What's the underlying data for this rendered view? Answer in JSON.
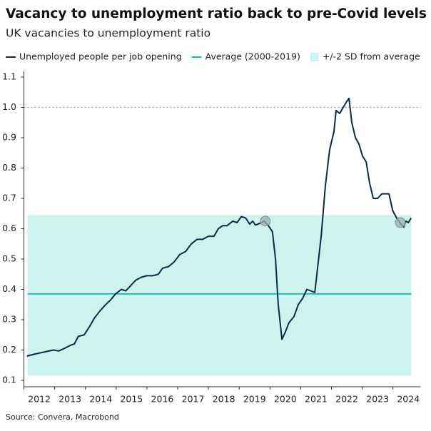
{
  "chart_data": {
    "type": "line",
    "title": "Vacancy to unemployment ratio back to pre-Covid levels",
    "subtitle": "UK vacancies to unemployment ratio",
    "source": "Source: Convera, Macrobond",
    "series": [
      {
        "name": "Unemployed people per job opening",
        "color": "#0d2a44",
        "x": [
          2012.1,
          2012.29,
          2012.5,
          2012.73,
          2012.96,
          2013.13,
          2013.31,
          2013.5,
          2013.64,
          2013.77,
          2013.96,
          2014.15,
          2014.29,
          2014.48,
          2014.66,
          2014.82,
          2014.98,
          2015.17,
          2015.31,
          2015.45,
          2015.63,
          2015.82,
          2016.0,
          2016.19,
          2016.37,
          2016.51,
          2016.7,
          2016.88,
          2017.07,
          2017.26,
          2017.44,
          2017.63,
          2017.81,
          2018.0,
          2018.18,
          2018.32,
          2018.46,
          2018.6,
          2018.79,
          2018.93,
          2019.07,
          2019.21,
          2019.34,
          2019.44,
          2019.53,
          2019.67,
          2019.81,
          2019.95,
          2020.08,
          2020.18,
          2020.27,
          2020.39,
          2020.5,
          2020.62,
          2020.78,
          2020.92,
          2021.06,
          2021.2,
          2021.46,
          2021.67,
          2021.8,
          2021.94,
          2022.08,
          2022.15,
          2022.27,
          2022.38,
          2022.5,
          2022.57,
          2022.66,
          2022.78,
          2022.89,
          2023.01,
          2023.13,
          2023.24,
          2023.36,
          2023.5,
          2023.64,
          2023.87,
          2023.99,
          2024.12,
          2024.26,
          2024.35,
          2024.42,
          2024.5,
          2024.59
        ],
        "values": [
          0.18,
          0.185,
          0.19,
          0.195,
          0.2,
          0.197,
          0.205,
          0.215,
          0.22,
          0.245,
          0.25,
          0.28,
          0.305,
          0.33,
          0.35,
          0.365,
          0.385,
          0.4,
          0.395,
          0.41,
          0.43,
          0.44,
          0.445,
          0.445,
          0.45,
          0.47,
          0.475,
          0.49,
          0.515,
          0.525,
          0.55,
          0.565,
          0.565,
          0.575,
          0.575,
          0.6,
          0.61,
          0.61,
          0.625,
          0.62,
          0.64,
          0.635,
          0.615,
          0.625,
          0.612,
          0.618,
          0.625,
          0.61,
          0.59,
          0.5,
          0.35,
          0.235,
          0.26,
          0.29,
          0.31,
          0.35,
          0.37,
          0.4,
          0.39,
          0.58,
          0.74,
          0.86,
          0.92,
          0.99,
          0.98,
          1.0,
          1.02,
          1.03,
          0.95,
          0.9,
          0.88,
          0.84,
          0.82,
          0.75,
          0.7,
          0.7,
          0.715,
          0.715,
          0.66,
          0.635,
          0.615,
          0.605,
          0.625,
          0.62,
          0.635
        ]
      }
    ],
    "average": {
      "name": "Average (2000-2019)",
      "value": 0.385,
      "color": "#14b8b0"
    },
    "band": {
      "name": "+/-2 SD from average",
      "low": 0.115,
      "high": 0.645,
      "color": "#cdf3ef"
    },
    "reference_line": {
      "value": 1,
      "color": "#999999"
    },
    "highlight_points": {
      "x": [
        2019.85,
        2024.24
      ],
      "values": [
        0.625,
        0.62
      ],
      "color": "#9bb0b0"
    },
    "xlim": [
      2012,
      2024.9
    ],
    "xticks": [
      2012,
      2013,
      2014,
      2015,
      2016,
      2017,
      2018,
      2019,
      2020,
      2021,
      2022,
      2023,
      2024
    ],
    "ylim": [
      0.1,
      1.1
    ],
    "yticks": [
      0.1,
      0.2,
      0.3,
      0.4,
      0.5,
      0.6,
      0.7,
      0.8,
      0.9,
      {
        "value": 1,
        "label": "1.0"
      },
      1.1
    ]
  }
}
